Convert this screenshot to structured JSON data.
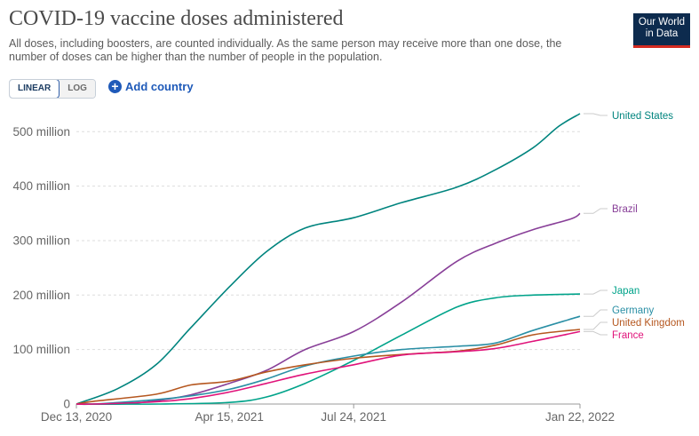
{
  "header": {
    "title": "COVID-19 vaccine doses administered",
    "subtitle": "All doses, including boosters, are counted individually. As the same person may receive more than one dose, the number of doses can be higher than the number of people in the population.",
    "logo_line1": "Our World",
    "logo_line2": "in Data"
  },
  "controls": {
    "linear_label": "LINEAR",
    "log_label": "LOG",
    "active_scale": "linear",
    "add_country_label": "Add country"
  },
  "colors": {
    "United States": "#00847e",
    "Brazil": "#883f98",
    "Japan": "#00a38a",
    "Germany": "#2a8fa5",
    "United Kingdom": "#b5571f",
    "France": "#e0137a",
    "grid": "#dddddd",
    "axis": "#999999"
  },
  "chart_data": {
    "type": "line",
    "title": "COVID-19 vaccine doses administered",
    "xlabel": "",
    "ylabel": "",
    "x_ticks": [
      "Dec 13, 2020",
      "Apr 15, 2021",
      "Jul 24, 2021",
      "Jan 22, 2022"
    ],
    "y_ticks": [
      "0",
      "100 million",
      "200 million",
      "300 million",
      "400 million",
      "500 million"
    ],
    "y_tick_values": [
      0,
      100,
      200,
      300,
      400,
      500
    ],
    "ylim": [
      0,
      530
    ],
    "x_range": [
      "2020-12-13",
      "2022-01-22"
    ],
    "grid": true,
    "legend": "right (line end labels)",
    "series": [
      {
        "name": "United States",
        "x": [
          "2020-12-13",
          "2021-01-15",
          "2021-02-15",
          "2021-03-15",
          "2021-04-15",
          "2021-05-15",
          "2021-06-15",
          "2021-07-24",
          "2021-09-01",
          "2021-10-15",
          "2021-11-15",
          "2021-12-15",
          "2022-01-05",
          "2022-01-22"
        ],
        "values": [
          0,
          28,
          72,
          140,
          215,
          280,
          323,
          342,
          370,
          398,
          430,
          470,
          510,
          533
        ]
      },
      {
        "name": "Brazil",
        "x": [
          "2020-12-13",
          "2021-01-18",
          "2021-02-15",
          "2021-03-15",
          "2021-04-15",
          "2021-05-15",
          "2021-06-15",
          "2021-07-24",
          "2021-09-01",
          "2021-10-15",
          "2021-11-15",
          "2021-12-15",
          "2022-01-15",
          "2022-01-22"
        ],
        "values": [
          0,
          0,
          6,
          17,
          38,
          62,
          100,
          133,
          188,
          262,
          295,
          320,
          340,
          350
        ]
      },
      {
        "name": "Japan",
        "x": [
          "2020-12-13",
          "2021-02-17",
          "2021-04-15",
          "2021-05-15",
          "2021-06-15",
          "2021-07-24",
          "2021-09-01",
          "2021-10-15",
          "2021-11-15",
          "2021-12-15",
          "2022-01-22"
        ],
        "values": [
          0,
          0,
          3,
          13,
          38,
          80,
          127,
          178,
          195,
          200,
          202
        ]
      },
      {
        "name": "Germany",
        "x": [
          "2020-12-13",
          "2020-12-27",
          "2021-02-15",
          "2021-03-15",
          "2021-04-15",
          "2021-05-15",
          "2021-06-15",
          "2021-07-24",
          "2021-09-01",
          "2021-10-15",
          "2021-11-15",
          "2021-12-15",
          "2022-01-22"
        ],
        "values": [
          0,
          0,
          8,
          15,
          27,
          46,
          70,
          88,
          100,
          106,
          112,
          135,
          161
        ]
      },
      {
        "name": "United Kingdom",
        "x": [
          "2020-12-13",
          "2020-12-27",
          "2021-02-15",
          "2021-03-15",
          "2021-04-15",
          "2021-05-15",
          "2021-06-15",
          "2021-07-24",
          "2021-09-01",
          "2021-10-15",
          "2021-11-15",
          "2021-12-15",
          "2022-01-22"
        ],
        "values": [
          0,
          5,
          18,
          35,
          42,
          59,
          72,
          84,
          91,
          97,
          108,
          127,
          137
        ]
      },
      {
        "name": "France",
        "x": [
          "2020-12-13",
          "2020-12-27",
          "2021-02-15",
          "2021-03-15",
          "2021-04-15",
          "2021-05-15",
          "2021-06-15",
          "2021-07-24",
          "2021-09-01",
          "2021-10-15",
          "2021-11-15",
          "2021-12-15",
          "2022-01-22"
        ],
        "values": [
          0,
          0,
          4,
          10,
          22,
          38,
          55,
          72,
          90,
          96,
          102,
          115,
          133
        ]
      }
    ]
  }
}
